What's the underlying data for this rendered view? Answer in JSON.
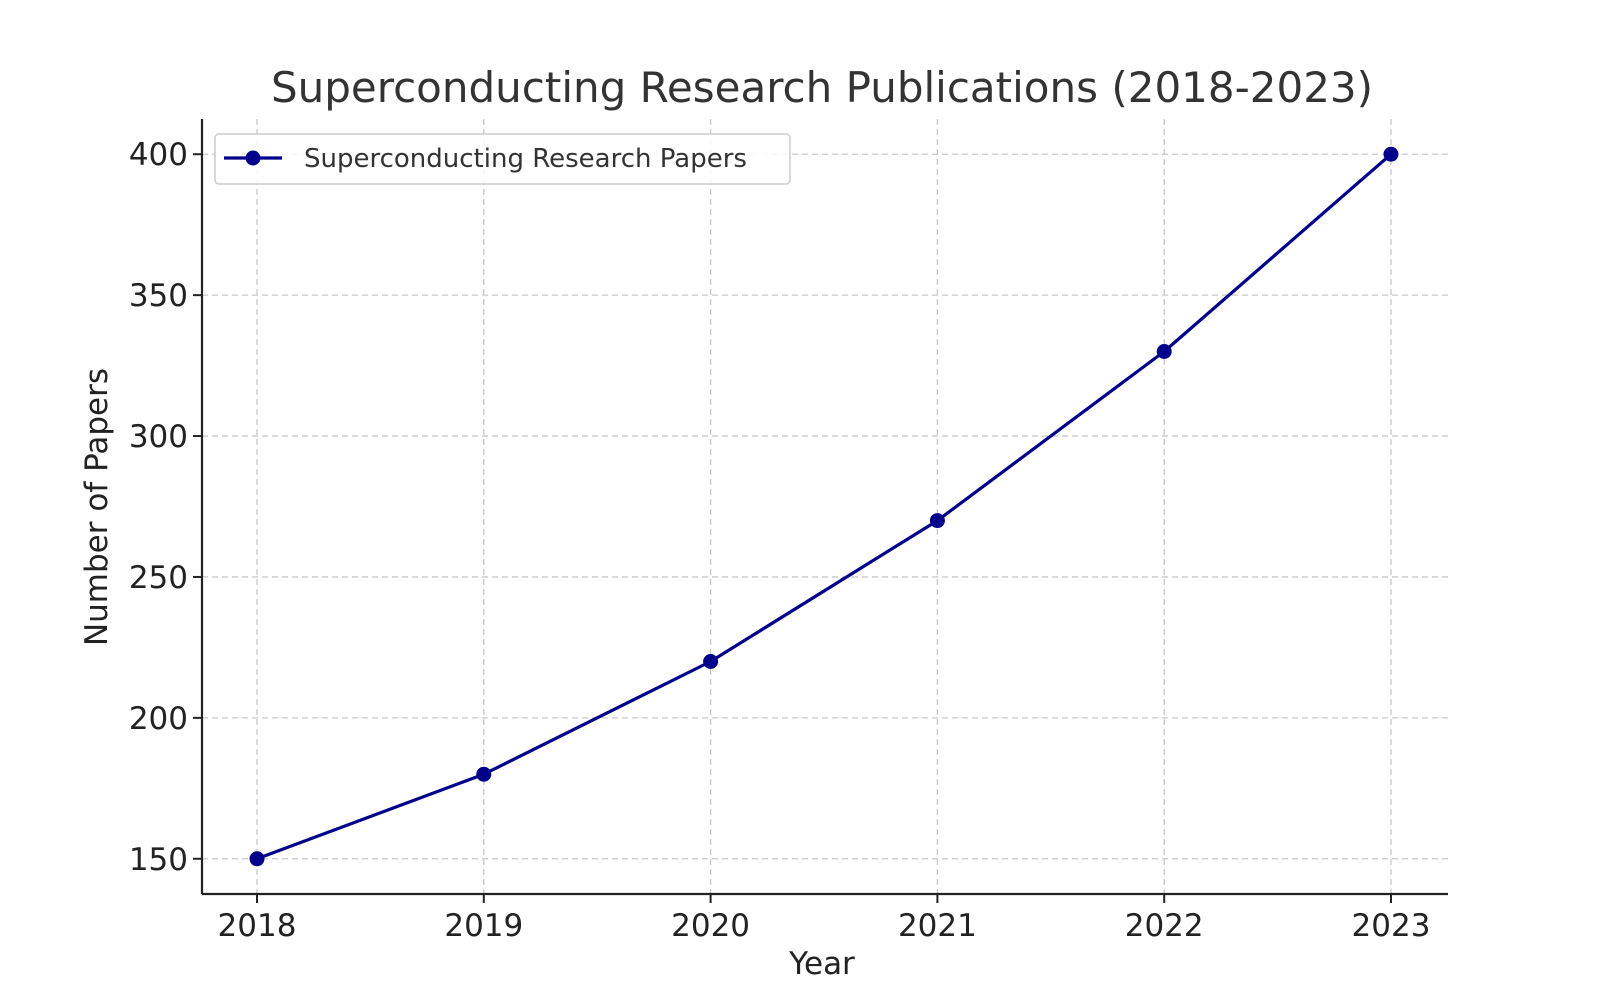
{
  "chart_data": {
    "type": "line",
    "title": "Superconducting Research Publications (2018-2023)",
    "xlabel": "Year",
    "ylabel": "Number of Papers",
    "categories": [
      "2018",
      "2019",
      "2020",
      "2021",
      "2022",
      "2023"
    ],
    "yticks": [
      150,
      200,
      250,
      300,
      350,
      400
    ],
    "ylim": [
      137.5,
      412.5
    ],
    "grid": true,
    "legend_position": "top-left",
    "series": [
      {
        "name": "Superconducting Research Papers",
        "color": "#00008b",
        "marker": "circle",
        "values": [
          150,
          180,
          220,
          270,
          330,
          400
        ]
      }
    ]
  }
}
